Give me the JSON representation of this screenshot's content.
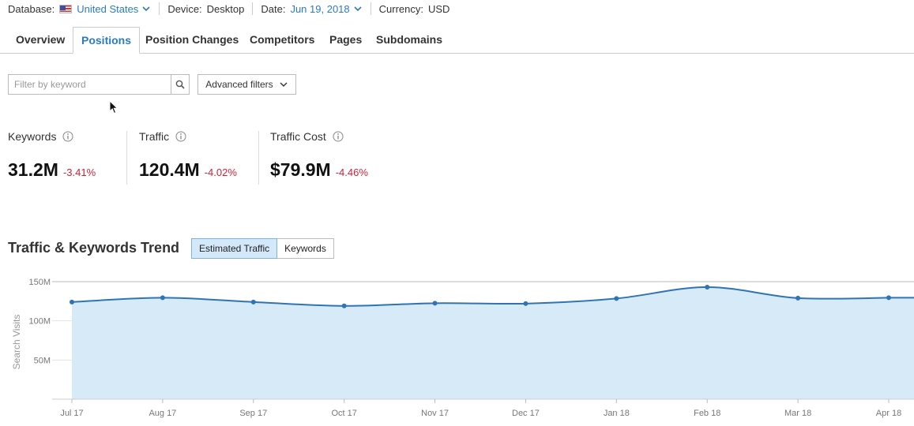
{
  "topbar": {
    "database_label": "Database:",
    "database_value": "United States",
    "device_label": "Device:",
    "device_value": "Desktop",
    "date_label": "Date:",
    "date_value": "Jun 19, 2018",
    "currency_label": "Currency:",
    "currency_value": "USD"
  },
  "tabs": [
    {
      "label": "Overview",
      "active": false
    },
    {
      "label": "Positions",
      "active": true
    },
    {
      "label": "Position Changes",
      "active": false
    },
    {
      "label": "Competitors",
      "active": false
    },
    {
      "label": "Pages",
      "active": false
    },
    {
      "label": "Subdomains",
      "active": false
    }
  ],
  "filter": {
    "placeholder": "Filter by keyword",
    "advanced_label": "Advanced filters"
  },
  "metrics": [
    {
      "label": "Keywords",
      "value": "31.2M",
      "delta": "-3.41%"
    },
    {
      "label": "Traffic",
      "value": "120.4M",
      "delta": "-4.02%"
    },
    {
      "label": "Traffic Cost",
      "value": "$79.9M",
      "delta": "-4.46%"
    }
  ],
  "trend": {
    "title": "Traffic & Keywords Trend",
    "toggle_traffic": "Estimated Traffic",
    "toggle_keywords": "Keywords"
  },
  "colors": {
    "accent": "#2b7bc0",
    "negative": "#d0213a",
    "line": "#2f74b5",
    "area": "#d6eaf8"
  },
  "chart_data": {
    "type": "area",
    "ylabel": "Search Visits",
    "ylim": [
      0,
      150000000
    ],
    "y_ticks": [
      "50M",
      "100M",
      "150M"
    ],
    "y_tick_values": [
      50000000,
      100000000,
      150000000
    ],
    "categories": [
      "Jul 17",
      "Aug 17",
      "Sep 17",
      "Oct 17",
      "Nov 17",
      "Dec 17",
      "Jan 18",
      "Feb 18",
      "Mar 18",
      "Apr 18"
    ],
    "values": [
      124000000,
      129500000,
      124000000,
      119000000,
      122500000,
      122000000,
      128500000,
      143000000,
      129000000,
      129500000
    ],
    "grid": true
  }
}
